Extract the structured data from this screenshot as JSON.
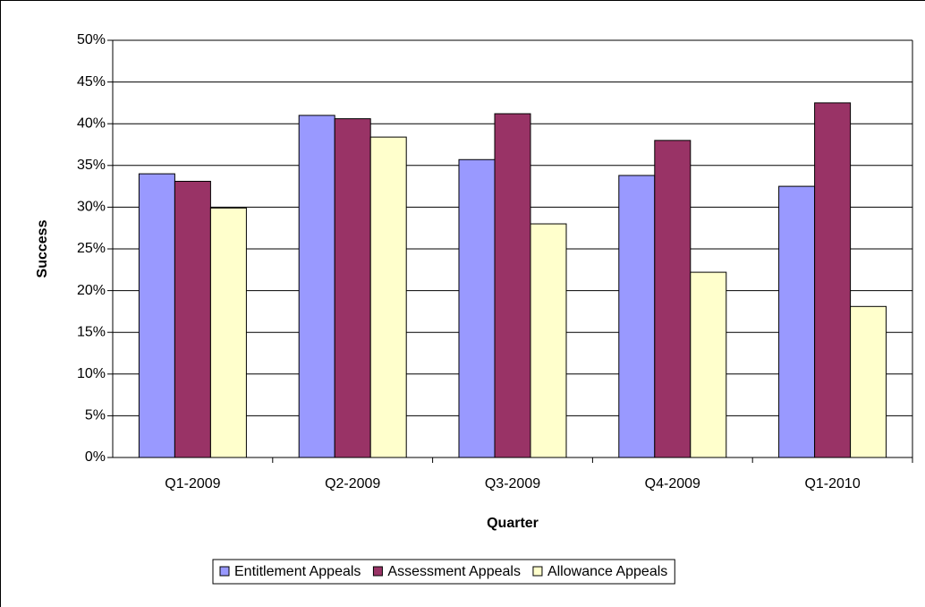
{
  "chart_data": {
    "type": "bar",
    "x_label": "Quarter",
    "y_label": "Success",
    "categories": [
      "Q1-2009",
      "Q2-2009",
      "Q3-2009",
      "Q4-2009",
      "Q1-2010"
    ],
    "series": [
      {
        "name": "Entitlement Appeals",
        "color": "#9999ff",
        "values": [
          34.0,
          41.0,
          35.7,
          33.8,
          32.5
        ]
      },
      {
        "name": "Assessment Appeals",
        "color": "#993366",
        "values": [
          33.1,
          40.6,
          41.2,
          38.0,
          42.5
        ]
      },
      {
        "name": "Allowance Appeals",
        "color": "#ffffcc",
        "values": [
          29.9,
          38.4,
          28.0,
          22.2,
          18.1
        ]
      }
    ],
    "ylim": [
      0,
      50
    ],
    "yticks": [
      {
        "value": 0,
        "label": "0%"
      },
      {
        "value": 5,
        "label": "5%"
      },
      {
        "value": 10,
        "label": "10%"
      },
      {
        "value": 15,
        "label": "15%"
      },
      {
        "value": 20,
        "label": "20%"
      },
      {
        "value": 25,
        "label": "25%"
      },
      {
        "value": 30,
        "label": "30%"
      },
      {
        "value": 35,
        "label": "35%"
      },
      {
        "value": 40,
        "label": "40%"
      },
      {
        "value": 45,
        "label": "45%"
      },
      {
        "value": 50,
        "label": "50%"
      }
    ],
    "grid": true,
    "legend": "bottom"
  }
}
